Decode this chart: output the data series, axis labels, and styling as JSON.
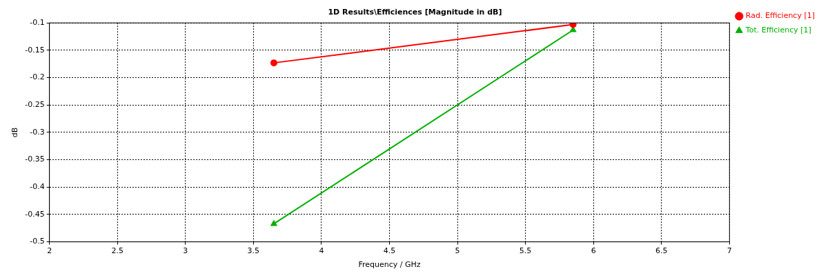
{
  "chart_data": {
    "type": "line",
    "title": "1D Results\\Efficiences [Magnitude in dB]",
    "xlabel": "Frequency / GHz",
    "ylabel": "dB",
    "x": [
      3.65,
      5.85
    ],
    "series": [
      {
        "name": "Rad. Efficiency [1]",
        "color": "#ff0000",
        "marker": "circle",
        "values": [
          -0.173,
          -0.103
        ]
      },
      {
        "name": "Tot. Efficiency [1]",
        "color": "#00b000",
        "marker": "triangle",
        "values": [
          -0.467,
          -0.113
        ]
      }
    ],
    "xlim": [
      2,
      7
    ],
    "xticks": [
      2,
      2.5,
      3,
      3.5,
      4,
      4.5,
      5,
      5.5,
      6,
      6.5,
      7
    ],
    "ylim": [
      -0.5,
      -0.1
    ],
    "yticks": [
      -0.5,
      -0.45,
      -0.4,
      -0.35,
      -0.3,
      -0.25,
      -0.2,
      -0.15,
      -0.1
    ],
    "grid": true,
    "legend": "top right",
    "line_style": "solid"
  }
}
